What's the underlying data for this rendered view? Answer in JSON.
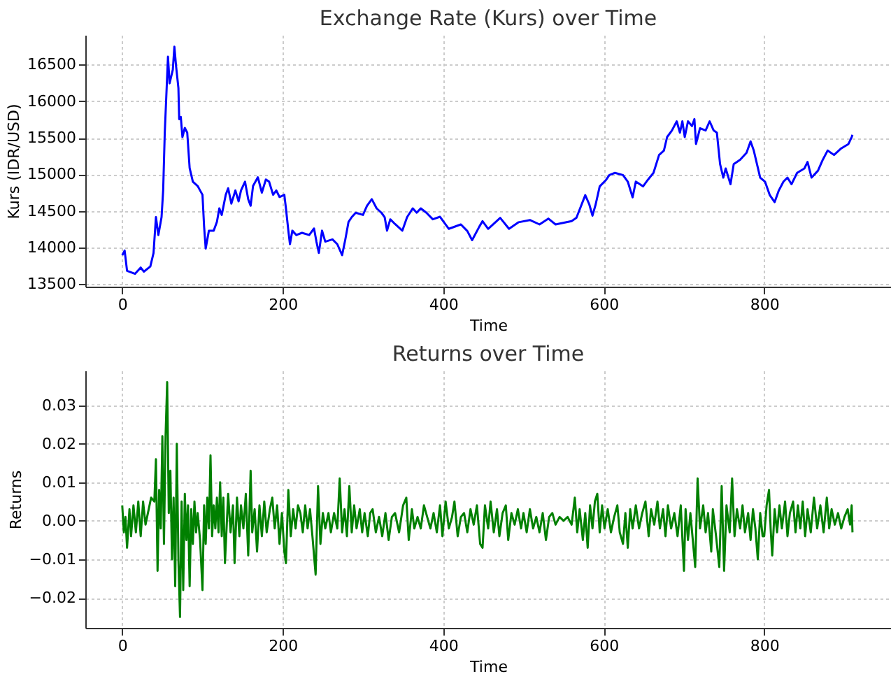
{
  "chart_data": [
    {
      "type": "line",
      "title": "Exchange Rate (Kurs) over Time",
      "xlabel": "Time",
      "ylabel": "Kurs (IDR/USD)",
      "grid": true,
      "xlim": [
        -46,
        958
      ],
      "xticks": [
        0,
        200,
        400,
        600,
        800
      ],
      "ylim": [
        13464,
        16906
      ],
      "yticks": [
        13500,
        14000,
        14500,
        15000,
        15500,
        16000,
        16500
      ],
      "series": [
        {
          "color": "#0000ff",
          "x": [
            0,
            3,
            6,
            16,
            23,
            27,
            35,
            39,
            42,
            45,
            49,
            51,
            53,
            57,
            59,
            63,
            65,
            67,
            70,
            71,
            73,
            75,
            78,
            81,
            84,
            88,
            94,
            97,
            100,
            102,
            104,
            108,
            114,
            118,
            121,
            124,
            129,
            132,
            136,
            141,
            145,
            148,
            153,
            157,
            160,
            163,
            169,
            174,
            179,
            183,
            188,
            192,
            196,
            202,
            204,
            207,
            209,
            212,
            217,
            224,
            233,
            239,
            242,
            245,
            249,
            253,
            262,
            268,
            274,
            278,
            282,
            286,
            291,
            300,
            305,
            311,
            317,
            323,
            327,
            330,
            334,
            340,
            349,
            355,
            362,
            367,
            372,
            379,
            387,
            396,
            407,
            422,
            430,
            436,
            445,
            449,
            456,
            471,
            482,
            494,
            508,
            520,
            531,
            540,
            560,
            566,
            577,
            582,
            586,
            590,
            595,
            603,
            607,
            614,
            624,
            630,
            636,
            640,
            649,
            655,
            662,
            669,
            675,
            679,
            685,
            691,
            695,
            698,
            701,
            705,
            710,
            713,
            715,
            720,
            727,
            732,
            737,
            741,
            745,
            749,
            752,
            758,
            762,
            770,
            778,
            783,
            787,
            795,
            801,
            807,
            813,
            818,
            824,
            829,
            834,
            841,
            850,
            854,
            859,
            867,
            873,
            879,
            887,
            896,
            905,
            909,
            910
          ],
          "values": [
            13895,
            13957,
            13680,
            13640,
            13725,
            13670,
            13740,
            13925,
            14415,
            14170,
            14415,
            14780,
            15570,
            16610,
            16245,
            16430,
            16745,
            16490,
            16180,
            15755,
            15785,
            15510,
            15635,
            15570,
            15085,
            14900,
            14840,
            14780,
            14720,
            14290,
            13985,
            14230,
            14230,
            14350,
            14535,
            14445,
            14720,
            14810,
            14600,
            14780,
            14630,
            14780,
            14900,
            14660,
            14570,
            14840,
            14960,
            14750,
            14930,
            14900,
            14720,
            14780,
            14690,
            14720,
            14535,
            14230,
            14045,
            14230,
            14170,
            14200,
            14170,
            14260,
            14080,
            13925,
            14230,
            14080,
            14110,
            14045,
            13895,
            14110,
            14350,
            14415,
            14475,
            14445,
            14570,
            14660,
            14535,
            14475,
            14415,
            14230,
            14385,
            14320,
            14230,
            14415,
            14535,
            14475,
            14535,
            14475,
            14385,
            14420,
            14255,
            14315,
            14225,
            14100,
            14285,
            14360,
            14255,
            14405,
            14255,
            14345,
            14375,
            14315,
            14395,
            14315,
            14360,
            14405,
            14715,
            14590,
            14435,
            14590,
            14835,
            14925,
            14990,
            15020,
            14990,
            14900,
            14685,
            14900,
            14835,
            14925,
            15020,
            15265,
            15325,
            15510,
            15600,
            15725,
            15570,
            15725,
            15510,
            15725,
            15660,
            15755,
            15415,
            15630,
            15600,
            15725,
            15600,
            15570,
            15140,
            14955,
            15080,
            14865,
            15140,
            15200,
            15295,
            15450,
            15325,
            14955,
            14900,
            14715,
            14620,
            14775,
            14900,
            14955,
            14865,
            15020,
            15080,
            15170,
            14955,
            15050,
            15200,
            15325,
            15265,
            15355,
            15415,
            15510,
            15540
          ]
        }
      ]
    },
    {
      "type": "line",
      "title": "Returns over Time",
      "xlabel": "Time",
      "ylabel": "Returns",
      "grid": true,
      "xlim": [
        -46,
        958
      ],
      "xticks": [
        0,
        200,
        400,
        600,
        800
      ],
      "ylim": [
        -0.0278,
        0.039
      ],
      "yticks": [
        {
          "value": -0.02,
          "label": "−0.02"
        },
        {
          "value": -0.01,
          "label": "−0.01"
        },
        {
          "value": 0,
          "label": "0.00"
        },
        0.01,
        0.02,
        0.03
      ],
      "series": [
        {
          "color": "#008000",
          "x": [
            0,
            2,
            4,
            6,
            9,
            11,
            14,
            17,
            20,
            23,
            26,
            29,
            32,
            36,
            40,
            42,
            44,
            46,
            48,
            50,
            52,
            54,
            56,
            58,
            60,
            62,
            64,
            66,
            68,
            70,
            72,
            74,
            76,
            78,
            80,
            82,
            84,
            86,
            88,
            90,
            92,
            94,
            97,
            100,
            102,
            104,
            106,
            108,
            110,
            112,
            114,
            116,
            118,
            120,
            122,
            124,
            126,
            128,
            132,
            135,
            138,
            140,
            143,
            146,
            148,
            151,
            154,
            157,
            160,
            162,
            165,
            168,
            171,
            174,
            177,
            180,
            184,
            187,
            190,
            193,
            196,
            199,
            202,
            204,
            207,
            210,
            213,
            216,
            219,
            222,
            225,
            228,
            231,
            234,
            237,
            241,
            244,
            247,
            250,
            253,
            257,
            260,
            264,
            268,
            271,
            274,
            277,
            280,
            283,
            286,
            289,
            292,
            296,
            299,
            302,
            306,
            309,
            312,
            316,
            320,
            324,
            328,
            332,
            336,
            340,
            345,
            350,
            354,
            357,
            361,
            364,
            368,
            372,
            376,
            380,
            384,
            388,
            392,
            396,
            399,
            403,
            407,
            411,
            414,
            418,
            422,
            426,
            430,
            434,
            438,
            442,
            446,
            449,
            452,
            456,
            459,
            463,
            467,
            470,
            474,
            478,
            481,
            485,
            489,
            493,
            497,
            500,
            504,
            508,
            512,
            516,
            520,
            524,
            528,
            532,
            536,
            540,
            545,
            550,
            555,
            560,
            564,
            567,
            570,
            574,
            577,
            580,
            583,
            586,
            589,
            592,
            595,
            598,
            601,
            605,
            609,
            613,
            617,
            620,
            624,
            627,
            630,
            633,
            636,
            640,
            644,
            648,
            652,
            656,
            659,
            663,
            667,
            670,
            674,
            677,
            680,
            684,
            688,
            692,
            696,
            700,
            702,
            705,
            708,
            714,
            717,
            720,
            724,
            727,
            730,
            734,
            736,
            740,
            744,
            747,
            750,
            753,
            757,
            760,
            763,
            766,
            770,
            773,
            776,
            780,
            783,
            786,
            789,
            792,
            795,
            798,
            800,
            803,
            806,
            808,
            810,
            813,
            816,
            819,
            822,
            826,
            829,
            832,
            836,
            839,
            842,
            845,
            848,
            851,
            854,
            858,
            862,
            866,
            870,
            874,
            878,
            881,
            884,
            888,
            892,
            896,
            900,
            904,
            907,
            909,
            910
          ],
          "values": [
            0.004,
            -0.003,
            0.001,
            -0.007,
            0.003,
            -0.004,
            0.004,
            -0.003,
            0.005,
            -0.004,
            0.005,
            -0.001,
            0.002,
            0.006,
            0.005,
            0.016,
            -0.013,
            0.008,
            -0.002,
            0.022,
            -0.006,
            0.022,
            0.036,
            0.002,
            0.013,
            -0.01,
            0.006,
            -0.017,
            0.02,
            -0.01,
            -0.025,
            0.005,
            -0.018,
            0.007,
            -0.005,
            0.004,
            -0.017,
            0.003,
            -0.006,
            0.005,
            -0.003,
            0.002,
            -0.005,
            -0.018,
            0.004,
            -0.006,
            0.006,
            -0.002,
            0.017,
            -0.004,
            0.004,
            -0.002,
            0.006,
            -0.003,
            0.01,
            -0.004,
            0.006,
            -0.011,
            0.007,
            -0.003,
            0.004,
            -0.011,
            0.006,
            -0.004,
            0.004,
            -0.002,
            0.007,
            -0.009,
            0.013,
            -0.003,
            0.003,
            -0.008,
            0.004,
            -0.004,
            0.005,
            -0.003,
            0.003,
            0.006,
            -0.002,
            0.004,
            -0.006,
            0.002,
            -0.008,
            -0.011,
            0.008,
            -0.004,
            0.003,
            -0.002,
            0.004,
            0.002,
            -0.003,
            0.004,
            -0.002,
            0.003,
            -0.004,
            -0.014,
            0.009,
            -0.006,
            0.002,
            -0.002,
            0.002,
            -0.003,
            0.002,
            -0.002,
            0.011,
            -0.003,
            0.003,
            -0.004,
            0.009,
            -0.003,
            0.004,
            -0.002,
            0.003,
            -0.003,
            0.002,
            -0.004,
            0.002,
            0.003,
            -0.003,
            0.001,
            -0.004,
            0.002,
            -0.005,
            0.001,
            0.002,
            -0.003,
            0.004,
            0.006,
            -0.005,
            0.003,
            -0.002,
            0.001,
            -0.002,
            0.004,
            0.001,
            -0.002,
            0.002,
            -0.003,
            0.004,
            -0.004,
            0.005,
            -0.002,
            0.001,
            0.005,
            -0.004,
            0.001,
            0.002,
            -0.003,
            0.003,
            -0.001,
            0.004,
            -0.006,
            -0.007,
            0.004,
            -0.002,
            0.005,
            -0.003,
            0.003,
            -0.004,
            0.002,
            0.004,
            -0.005,
            0.002,
            -0.001,
            0.003,
            -0.002,
            0.002,
            -0.003,
            0.003,
            -0.002,
            0.001,
            -0.003,
            0.002,
            -0.005,
            0.001,
            0.002,
            -0.001,
            0.001,
            0,
            0.001,
            -0.001,
            0.006,
            -0.003,
            0.003,
            -0.005,
            0.002,
            -0.007,
            0.004,
            -0.002,
            0.005,
            0.007,
            -0.003,
            0.004,
            -0.002,
            0.003,
            -0.003,
            0.001,
            0.004,
            -0.003,
            -0.006,
            0.002,
            -0.007,
            0.003,
            -0.002,
            0.004,
            -0.002,
            0.002,
            0.005,
            -0.004,
            0.003,
            -0.001,
            0.005,
            -0.002,
            0.003,
            -0.004,
            0.004,
            -0.002,
            0.002,
            -0.004,
            0.004,
            -0.013,
            0.003,
            -0.005,
            0.002,
            -0.012,
            0.011,
            -0.002,
            0.004,
            -0.003,
            0.002,
            -0.008,
            0.003,
            -0.004,
            -0.012,
            0.009,
            -0.013,
            0.004,
            -0.003,
            0.011,
            -0.004,
            0.003,
            -0.002,
            0.004,
            -0.003,
            0.002,
            -0.005,
            0.003,
            -0.002,
            -0.01,
            0.002,
            -0.004,
            -0.004,
            0.004,
            0.008,
            -0.002,
            -0.009,
            0.003,
            -0.003,
            0.004,
            -0.002,
            0.005,
            -0.004,
            0.002,
            0.005,
            -0.003,
            0.004,
            -0.002,
            0.005,
            -0.004,
            0.003,
            -0.003,
            0.006,
            -0.002,
            0.004,
            -0.003,
            0.006,
            -0.002,
            0.003,
            -0.001,
            0.002,
            -0.002,
            0.001,
            0.003,
            -0.001,
            0.004,
            -0.003
          ]
        }
      ]
    }
  ]
}
